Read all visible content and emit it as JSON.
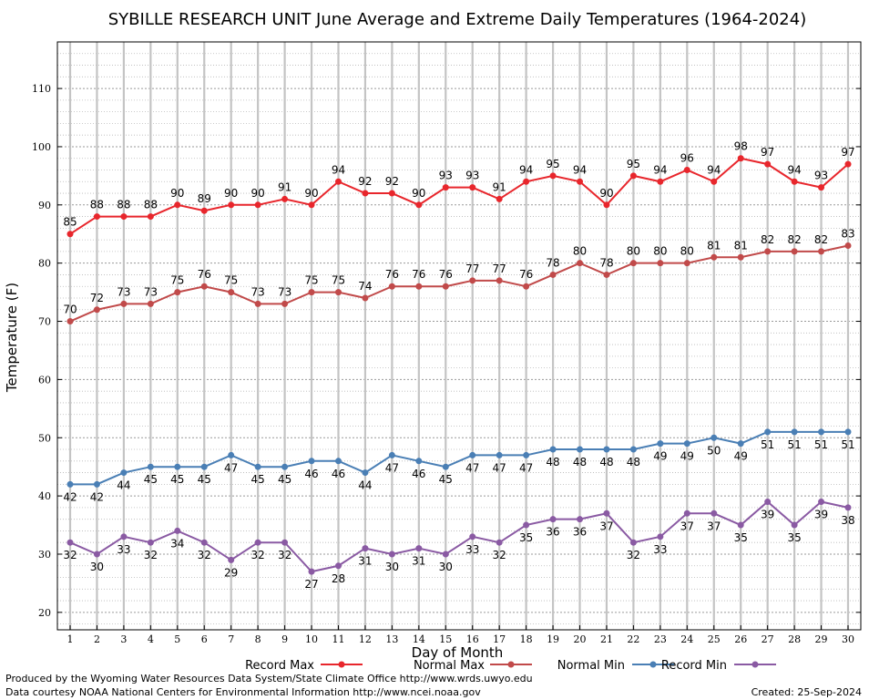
{
  "chart_data": {
    "type": "line",
    "title": "SYBILLE RESEARCH UNIT June Average and Extreme Daily Temperatures (1964-2024)",
    "xlabel": "Day of Month",
    "ylabel": "Temperature (F)",
    "xlim": [
      1,
      30
    ],
    "ylim": [
      17,
      118
    ],
    "yticks": [
      20,
      30,
      40,
      50,
      60,
      70,
      80,
      90,
      100,
      110
    ],
    "x": [
      1,
      2,
      3,
      4,
      5,
      6,
      7,
      8,
      9,
      10,
      11,
      12,
      13,
      14,
      15,
      16,
      17,
      18,
      19,
      20,
      21,
      22,
      23,
      24,
      25,
      26,
      27,
      28,
      29,
      30
    ],
    "grid": true,
    "legend_position": "bottom",
    "series": [
      {
        "name": "Record Max",
        "color": "#e8262c",
        "label_position": "above",
        "values": [
          85,
          88,
          88,
          88,
          90,
          89,
          90,
          90,
          91,
          90,
          94,
          92,
          92,
          90,
          93,
          93,
          91,
          94,
          95,
          94,
          90,
          95,
          94,
          96,
          94,
          98,
          97,
          94,
          93,
          97
        ]
      },
      {
        "name": "Normal Max",
        "color": "#c14a4a",
        "label_position": "above",
        "values": [
          70,
          72,
          73,
          73,
          75,
          76,
          75,
          73,
          73,
          75,
          75,
          74,
          76,
          76,
          76,
          77,
          77,
          76,
          78,
          80,
          78,
          80,
          80,
          80,
          81,
          81,
          82,
          82,
          82,
          83
        ]
      },
      {
        "name": "Normal Min",
        "color": "#4a7fb5",
        "label_position": "below",
        "values": [
          42,
          42,
          44,
          45,
          45,
          45,
          47,
          45,
          45,
          46,
          46,
          44,
          47,
          46,
          45,
          47,
          47,
          47,
          48,
          48,
          48,
          48,
          49,
          49,
          50,
          49,
          51,
          51,
          51,
          51
        ]
      },
      {
        "name": "Record Min",
        "color": "#8a5aa3",
        "label_position": "below",
        "values": [
          32,
          30,
          33,
          32,
          34,
          32,
          29,
          32,
          32,
          27,
          28,
          31,
          30,
          31,
          30,
          33,
          32,
          35,
          36,
          36,
          37,
          32,
          33,
          37,
          37,
          35,
          39,
          35,
          39,
          38
        ]
      }
    ]
  },
  "footer": {
    "produced_by": "Produced by the Wyoming Water Resources Data System/State Climate Office http://www.wrds.uwyo.edu",
    "data_courtesy": "Data courtesy NOAA National Centers for Environmental Information http://www.ncei.noaa.gov",
    "created": "Created:  25-Sep-2024"
  }
}
